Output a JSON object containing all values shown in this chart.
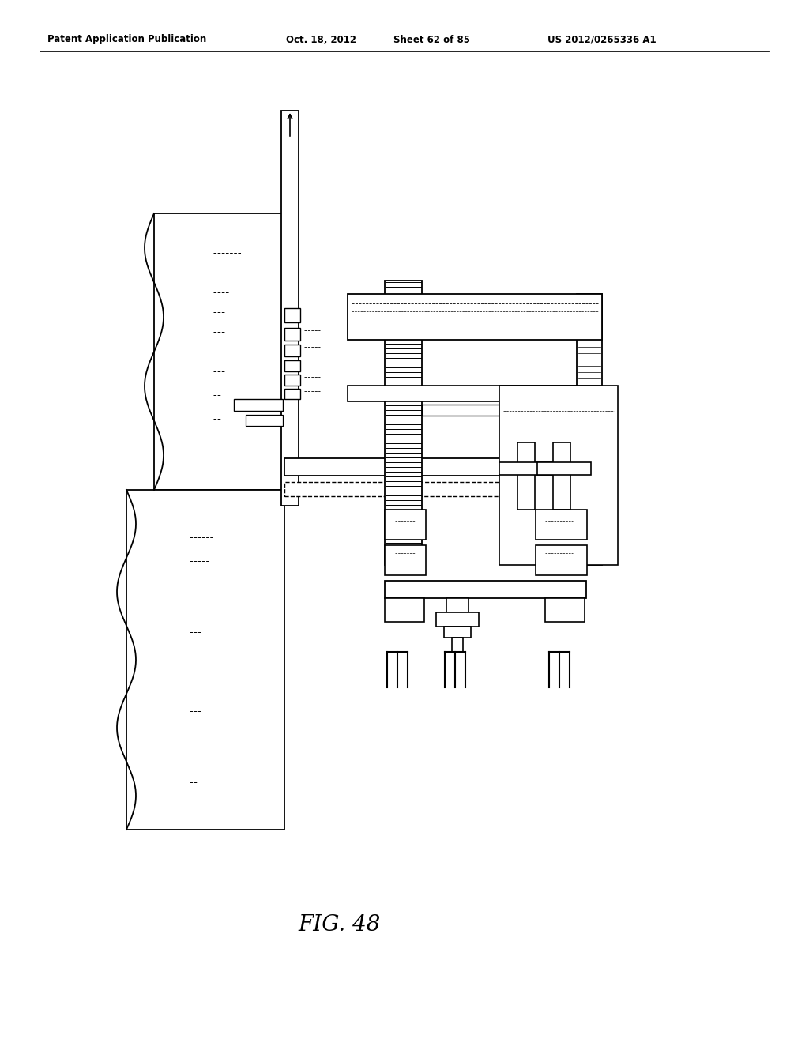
{
  "bg_color": "#ffffff",
  "line_color": "#000000",
  "header_text": "Patent Application Publication",
  "header_date": "Oct. 18, 2012",
  "header_sheet": "Sheet 62 of 85",
  "header_patent": "US 2012/0265336 A1",
  "figure_label": "FIG. 48"
}
